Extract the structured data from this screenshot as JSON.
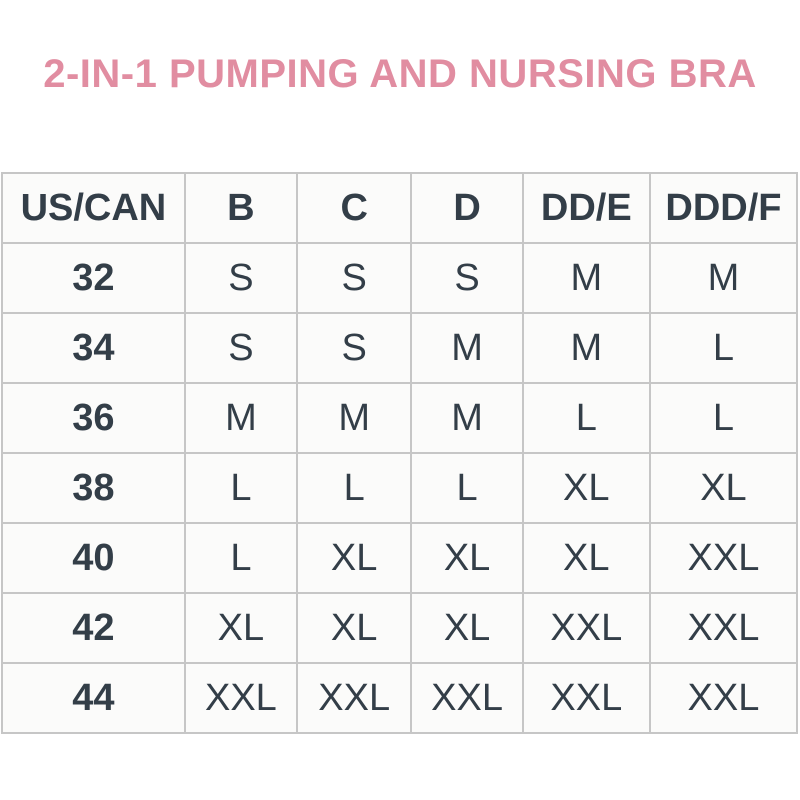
{
  "title": "2-IN-1 PUMPING AND NURSING BRA",
  "colors": {
    "title_pink": "#e18da1",
    "table_text": "#333e48",
    "table_border": "#c6c6c6",
    "cell_background": "#fbfbfa",
    "page_background": "#ffffff"
  },
  "chart_data": {
    "type": "table",
    "title": "2-IN-1 PUMPING AND NURSING BRA",
    "columns": [
      "US/CAN",
      "B",
      "C",
      "D",
      "DD/E",
      "DDD/F"
    ],
    "rows": [
      [
        "32",
        "S",
        "S",
        "S",
        "M",
        "M"
      ],
      [
        "34",
        "S",
        "S",
        "M",
        "M",
        "L"
      ],
      [
        "36",
        "M",
        "M",
        "M",
        "L",
        "L"
      ],
      [
        "38",
        "L",
        "L",
        "L",
        "XL",
        "XL"
      ],
      [
        "40",
        "L",
        "XL",
        "XL",
        "XL",
        "XXL"
      ],
      [
        "42",
        "XL",
        "XL",
        "XL",
        "XXL",
        "XXL"
      ],
      [
        "44",
        "XXL",
        "XXL",
        "XXL",
        "XXL",
        "XXL"
      ]
    ],
    "layout": {
      "grid": true,
      "header_bold": true,
      "first_column_bold": true,
      "cell_alignment": "center"
    }
  }
}
